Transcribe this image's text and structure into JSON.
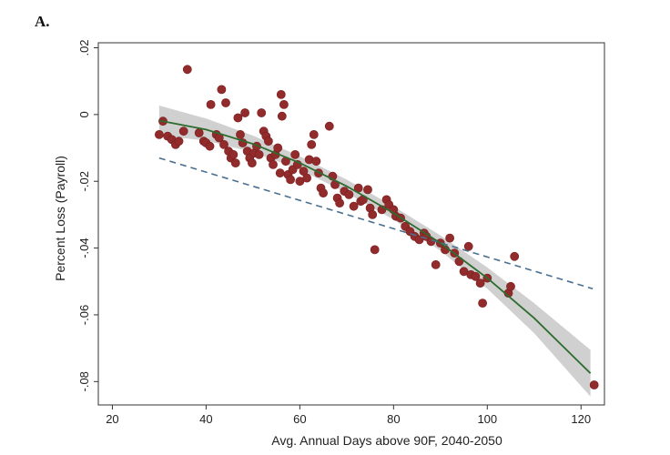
{
  "panel_label": "A.",
  "colors": {
    "points": "#922b2b",
    "fit_line": "#2e6b2e",
    "confidence_band": "#c8c8c8",
    "linear_fit": "#4a6f8f",
    "axis": "#333333"
  },
  "chart_data": {
    "type": "scatter",
    "title": "",
    "xlabel": "Avg. Annual Days above 90F, 2040-2050",
    "ylabel": "Percent Loss (Payroll)",
    "xlim": [
      17,
      125
    ],
    "ylim": [
      -0.087,
      0.0215
    ],
    "xticks": [
      20,
      40,
      60,
      80,
      100,
      120
    ],
    "xtick_labels": [
      "20",
      "40",
      "60",
      "80",
      "100",
      "120"
    ],
    "yticks": [
      0.02,
      0,
      -0.02,
      -0.04,
      -0.06,
      -0.08
    ],
    "ytick_labels": [
      ".02",
      "0",
      "-.02",
      "-.04",
      "-.06",
      "-.08"
    ],
    "grid": false,
    "series": [
      {
        "kind": "points",
        "points": [
          [
            30.0,
            -0.006
          ],
          [
            30.8,
            -0.002
          ],
          [
            31.8,
            -0.0065
          ],
          [
            32.7,
            -0.0075
          ],
          [
            33.5,
            -0.009
          ],
          [
            34.2,
            -0.008
          ],
          [
            35.2,
            -0.005
          ],
          [
            36.0,
            0.0135
          ],
          [
            38.5,
            -0.0055
          ],
          [
            39.5,
            -0.008
          ],
          [
            40.0,
            -0.0085
          ],
          [
            40.8,
            -0.0095
          ],
          [
            41.0,
            0.003
          ],
          [
            42.2,
            -0.006
          ],
          [
            42.8,
            -0.007
          ],
          [
            43.3,
            0.0075
          ],
          [
            43.8,
            -0.009
          ],
          [
            44.2,
            0.0035
          ],
          [
            44.8,
            -0.011
          ],
          [
            45.3,
            -0.013
          ],
          [
            45.8,
            -0.012
          ],
          [
            46.3,
            -0.0145
          ],
          [
            46.8,
            -0.001
          ],
          [
            47.3,
            -0.006
          ],
          [
            47.8,
            -0.0085
          ],
          [
            48.3,
            0.0005
          ],
          [
            48.8,
            -0.011
          ],
          [
            49.3,
            -0.013
          ],
          [
            49.8,
            -0.0145
          ],
          [
            50.3,
            -0.0115
          ],
          [
            50.8,
            -0.0095
          ],
          [
            51.3,
            -0.012
          ],
          [
            51.8,
            0.0005
          ],
          [
            52.3,
            -0.005
          ],
          [
            52.8,
            -0.0065
          ],
          [
            53.3,
            -0.008
          ],
          [
            53.8,
            -0.013
          ],
          [
            54.3,
            -0.015
          ],
          [
            54.8,
            -0.012
          ],
          [
            55.3,
            -0.01
          ],
          [
            55.8,
            -0.0175
          ],
          [
            56.0,
            0.006
          ],
          [
            56.2,
            -0.0005
          ],
          [
            56.6,
            0.003
          ],
          [
            57.0,
            -0.014
          ],
          [
            57.5,
            -0.018
          ],
          [
            58.0,
            -0.0195
          ],
          [
            58.5,
            -0.0165
          ],
          [
            59.0,
            -0.012
          ],
          [
            59.5,
            -0.015
          ],
          [
            60.0,
            -0.02
          ],
          [
            60.8,
            -0.017
          ],
          [
            61.5,
            -0.019
          ],
          [
            62.0,
            -0.0135
          ],
          [
            62.5,
            -0.009
          ],
          [
            63.0,
            -0.006
          ],
          [
            63.5,
            -0.014
          ],
          [
            64.0,
            -0.0175
          ],
          [
            64.5,
            -0.022
          ],
          [
            65.0,
            -0.0235
          ],
          [
            66.3,
            -0.0035
          ],
          [
            67.0,
            -0.0185
          ],
          [
            67.5,
            -0.021
          ],
          [
            68.0,
            -0.025
          ],
          [
            68.5,
            -0.0265
          ],
          [
            69.5,
            -0.023
          ],
          [
            70.5,
            -0.024
          ],
          [
            71.5,
            -0.0275
          ],
          [
            72.5,
            -0.022
          ],
          [
            73.0,
            -0.026
          ],
          [
            73.5,
            -0.0255
          ],
          [
            74.5,
            -0.0225
          ],
          [
            75.0,
            -0.028
          ],
          [
            75.5,
            -0.03
          ],
          [
            76.0,
            -0.0405
          ],
          [
            77.5,
            -0.0285
          ],
          [
            78.5,
            -0.0255
          ],
          [
            79.0,
            -0.027
          ],
          [
            80.0,
            -0.0285
          ],
          [
            80.5,
            -0.0305
          ],
          [
            81.5,
            -0.031
          ],
          [
            82.5,
            -0.0335
          ],
          [
            83.5,
            -0.035
          ],
          [
            84.5,
            -0.0365
          ],
          [
            85.5,
            -0.0375
          ],
          [
            86.5,
            -0.0355
          ],
          [
            87.0,
            -0.0365
          ],
          [
            88.0,
            -0.038
          ],
          [
            89.0,
            -0.045
          ],
          [
            90.0,
            -0.0385
          ],
          [
            91.0,
            -0.0405
          ],
          [
            92.0,
            -0.037
          ],
          [
            93.0,
            -0.0415
          ],
          [
            94.0,
            -0.044
          ],
          [
            95.0,
            -0.047
          ],
          [
            96.0,
            -0.0395
          ],
          [
            96.5,
            -0.048
          ],
          [
            97.5,
            -0.0485
          ],
          [
            98.5,
            -0.0505
          ],
          [
            99.0,
            -0.0565
          ],
          [
            100.0,
            -0.049
          ],
          [
            104.5,
            -0.0535
          ],
          [
            105.0,
            -0.0515
          ],
          [
            105.8,
            -0.0425
          ],
          [
            122.8,
            -0.081
          ]
        ]
      },
      {
        "kind": "quadratic_fit",
        "x": [
          30,
          40,
          50,
          60,
          70,
          80,
          90,
          100,
          110,
          122
        ],
        "y": [
          -0.0018,
          -0.0045,
          -0.0088,
          -0.0145,
          -0.0215,
          -0.0295,
          -0.0385,
          -0.049,
          -0.061,
          -0.0775
        ],
        "ci_upper": [
          0.0027,
          -0.0012,
          -0.0063,
          -0.0125,
          -0.0195,
          -0.0275,
          -0.0362,
          -0.0458,
          -0.0565,
          -0.0705
        ],
        "ci_lower": [
          -0.0063,
          -0.0078,
          -0.0113,
          -0.0165,
          -0.0235,
          -0.0315,
          -0.0408,
          -0.0522,
          -0.0655,
          -0.0845
        ]
      },
      {
        "kind": "linear_fit",
        "x": [
          30,
          122.5
        ],
        "y": [
          -0.013,
          -0.0522
        ]
      }
    ]
  }
}
